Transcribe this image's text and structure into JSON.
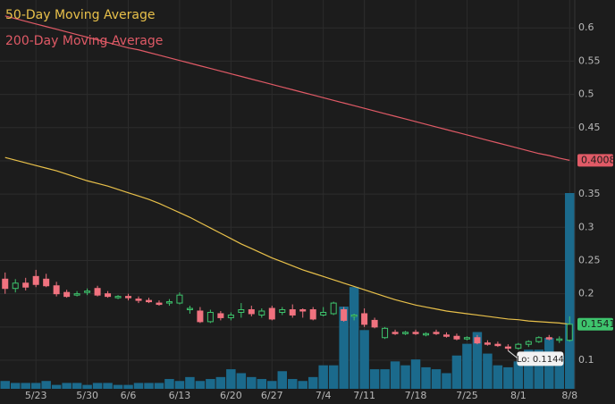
{
  "chart_data": {
    "type": "candlestick",
    "categories": [
      null,
      null,
      null,
      "5/23",
      null,
      null,
      null,
      null,
      "5/30",
      null,
      null,
      null,
      "6/6",
      null,
      null,
      null,
      null,
      "6/13",
      null,
      null,
      null,
      null,
      "6/20",
      null,
      null,
      null,
      "6/27",
      null,
      null,
      null,
      null,
      "7/4",
      null,
      null,
      null,
      "7/11",
      null,
      null,
      null,
      null,
      "7/18",
      null,
      null,
      null,
      null,
      "7/25",
      null,
      null,
      null,
      null,
      "8/1",
      null,
      null,
      null,
      null,
      "8/8"
    ],
    "open": [
      0.222,
      0.208,
      0.216,
      0.226,
      0.222,
      0.212,
      0.202,
      0.198,
      0.202,
      0.208,
      0.2,
      0.194,
      0.196,
      0.192,
      0.19,
      0.186,
      0.186,
      0.186,
      0.176,
      0.174,
      0.158,
      0.17,
      0.164,
      0.172,
      0.176,
      0.168,
      0.178,
      0.172,
      0.176,
      0.176,
      0.176,
      0.168,
      0.17,
      0.176,
      0.166,
      0.17,
      0.16,
      0.134,
      0.142,
      0.14,
      0.142,
      0.138,
      0.142,
      0.138,
      0.136,
      0.132,
      0.134,
      0.126,
      0.124,
      0.12,
      0.118,
      0.124,
      0.128,
      0.134,
      0.13,
      0.13
    ],
    "high": [
      0.232,
      0.222,
      0.224,
      0.236,
      0.23,
      0.218,
      0.206,
      0.204,
      0.208,
      0.212,
      0.204,
      0.198,
      0.2,
      0.196,
      0.194,
      0.19,
      0.192,
      0.202,
      0.182,
      0.18,
      0.176,
      0.174,
      0.172,
      0.186,
      0.182,
      0.178,
      0.182,
      0.18,
      0.184,
      0.178,
      0.18,
      0.18,
      0.188,
      0.18,
      0.17,
      0.178,
      0.164,
      0.15,
      0.146,
      0.144,
      0.146,
      0.142,
      0.146,
      0.142,
      0.14,
      0.136,
      0.138,
      0.13,
      0.128,
      0.124,
      0.126,
      0.13,
      0.136,
      0.138,
      0.136,
      0.166
    ],
    "low": [
      0.2,
      0.202,
      0.205,
      0.21,
      0.21,
      0.196,
      0.194,
      0.196,
      0.198,
      0.196,
      0.194,
      0.192,
      0.19,
      0.186,
      0.186,
      0.182,
      0.182,
      0.184,
      0.17,
      0.156,
      0.156,
      0.16,
      0.16,
      0.164,
      0.166,
      0.164,
      0.16,
      0.168,
      0.164,
      0.164,
      0.16,
      0.166,
      0.168,
      0.158,
      0.16,
      0.15,
      0.148,
      0.132,
      0.138,
      0.138,
      0.138,
      0.136,
      0.138,
      0.134,
      0.13,
      0.13,
      0.124,
      0.122,
      0.12,
      0.1144,
      0.116,
      0.12,
      0.126,
      0.13,
      0.126,
      0.128
    ],
    "close": [
      0.208,
      0.216,
      0.21,
      0.214,
      0.212,
      0.2,
      0.196,
      0.2,
      0.204,
      0.198,
      0.196,
      0.196,
      0.194,
      0.19,
      0.188,
      0.184,
      0.188,
      0.198,
      0.178,
      0.158,
      0.172,
      0.164,
      0.168,
      0.176,
      0.17,
      0.174,
      0.162,
      0.176,
      0.168,
      0.174,
      0.162,
      0.172,
      0.186,
      0.16,
      0.168,
      0.154,
      0.15,
      0.148,
      0.14,
      0.142,
      0.14,
      0.14,
      0.14,
      0.136,
      0.132,
      0.134,
      0.126,
      0.124,
      0.122,
      0.118,
      0.124,
      0.128,
      0.134,
      0.132,
      0.132,
      0.1541
    ],
    "up_color": "#3ec46d",
    "down_color": "#f0727f",
    "series": [
      {
        "name": "50-Day Moving Average",
        "color": "#e8c04a",
        "values": [
          0.405,
          0.401,
          0.397,
          0.393,
          0.389,
          0.385,
          0.38,
          0.375,
          0.37,
          0.366,
          0.362,
          0.357,
          0.352,
          0.347,
          0.342,
          0.336,
          0.329,
          0.322,
          0.315,
          0.307,
          0.299,
          0.291,
          0.283,
          0.275,
          0.268,
          0.261,
          0.254,
          0.248,
          0.242,
          0.236,
          0.231,
          0.226,
          0.221,
          0.216,
          0.211,
          0.206,
          0.201,
          0.196,
          0.191,
          0.187,
          0.183,
          0.18,
          0.177,
          0.174,
          0.172,
          0.17,
          0.168,
          0.166,
          0.164,
          0.162,
          0.161,
          0.159,
          0.158,
          0.157,
          0.156,
          0.1541
        ]
      },
      {
        "name": "200-Day Moving Average",
        "color": "#e05a66",
        "values": [
          0.618,
          0.614,
          0.61,
          0.606,
          0.602,
          0.598,
          0.594,
          0.59,
          0.586,
          0.582,
          0.578,
          0.574,
          0.57,
          0.567,
          0.563,
          0.559,
          0.555,
          0.551,
          0.547,
          0.543,
          0.539,
          0.535,
          0.531,
          0.527,
          0.523,
          0.519,
          0.515,
          0.511,
          0.507,
          0.503,
          0.499,
          0.495,
          0.491,
          0.487,
          0.483,
          0.479,
          0.475,
          0.471,
          0.467,
          0.463,
          0.459,
          0.455,
          0.451,
          0.447,
          0.443,
          0.439,
          0.435,
          0.431,
          0.427,
          0.423,
          0.419,
          0.415,
          0.411,
          0.408,
          0.404,
          0.4008
        ]
      }
    ],
    "volume": {
      "color": "#1b6a8c",
      "ylim": [
        0,
        100
      ],
      "values": [
        4,
        3,
        3,
        3,
        4,
        2,
        3,
        3,
        2,
        3,
        3,
        2,
        2,
        3,
        3,
        3,
        5,
        4,
        6,
        4,
        5,
        6,
        10,
        8,
        6,
        5,
        4,
        9,
        5,
        4,
        6,
        12,
        12,
        42,
        52,
        30,
        10,
        10,
        14,
        12,
        15,
        11,
        10,
        8,
        17,
        23,
        29,
        18,
        12,
        11,
        14,
        20,
        20,
        26,
        17,
        100
      ]
    },
    "ylim": [
      0.057,
      0.642
    ],
    "yticks": [
      0.1,
      0.15,
      0.2,
      0.25,
      0.3,
      0.35,
      0.4,
      0.45,
      0.5,
      0.55,
      0.6
    ],
    "grid": true,
    "annotations": [
      {
        "text": "Lo: 0.1144"
      }
    ]
  }
}
